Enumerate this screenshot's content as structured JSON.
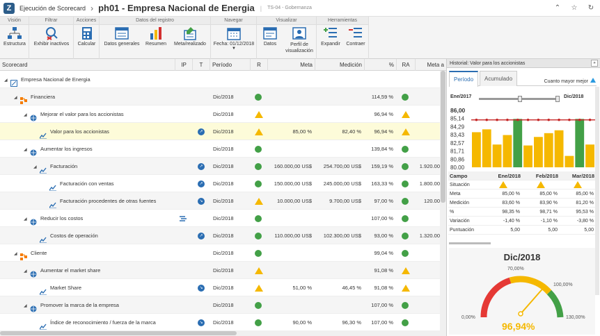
{
  "app": {
    "name": "Ejecución de Scorecard",
    "title": "ph01 - Empresa Nacional de Energia",
    "subtitle": "TS-04 - Gobernanza"
  },
  "ribbon": {
    "groups": [
      {
        "label": "Visión"
      },
      {
        "label": "Filtrar"
      },
      {
        "label": "Acciones"
      },
      {
        "label": "Datos del registro"
      },
      {
        "label": "Navegar"
      },
      {
        "label": "Visualizar"
      },
      {
        "label": "Herramientas"
      }
    ],
    "buttons": {
      "estructura": "Estructura",
      "exhibir": "Exhibir inactivos",
      "calcular": "Calcular",
      "datos_generales": "Datos generales",
      "resumen": "Resumen",
      "meta_realizado": "Meta/realizado",
      "fecha": "Fecha: 01/12/2018",
      "datos": "Datos",
      "perfil": "Perfil de visualización",
      "expandir": "Expandir",
      "contraer": "Contraer"
    }
  },
  "grid": {
    "headers": {
      "scorecard": "Scorecard",
      "ip": "IP",
      "t": "T",
      "periodo": "Período",
      "r": "R",
      "meta": "Meta",
      "medicion": "Medición",
      "pct": "%",
      "ra": "RA",
      "meta_acum": "Meta a"
    },
    "rows": [
      {
        "name": "Empresa Nacional de Energia",
        "periodo": "",
        "r": "",
        "meta": "",
        "medicion": "",
        "pct": "",
        "ra": "",
        "meta_acum": ""
      },
      {
        "name": "Financiera",
        "periodo": "Dic/2018",
        "r": "green",
        "meta": "",
        "medicion": "",
        "pct": "114,59 %",
        "ra": "green",
        "meta_acum": ""
      },
      {
        "name": "Mejorar el valor para los accionistas",
        "periodo": "Dic/2018",
        "r": "warn",
        "meta": "",
        "medicion": "",
        "pct": "96,94 %",
        "ra": "warn",
        "meta_acum": ""
      },
      {
        "name": "Valor para los accionistas",
        "periodo": "Dic/2018",
        "r": "warn",
        "meta": "85,00 %",
        "medicion": "82,40 %",
        "pct": "96,94 %",
        "ra": "warn",
        "meta_acum": ""
      },
      {
        "name": "Aumentar los ingresos",
        "periodo": "Dic/2018",
        "r": "green",
        "meta": "",
        "medicion": "",
        "pct": "139,84 %",
        "ra": "green",
        "meta_acum": ""
      },
      {
        "name": "Facturación",
        "periodo": "Dic/2018",
        "r": "green",
        "meta": "160.000,00 US$",
        "medicion": "254.700,00 US$",
        "pct": "159,19 %",
        "ra": "green",
        "meta_acum": "1.920.00"
      },
      {
        "name": "Facturación con ventas",
        "periodo": "Dic/2018",
        "r": "green",
        "meta": "150.000,00 US$",
        "medicion": "245.000,00 US$",
        "pct": "163,33 %",
        "ra": "green",
        "meta_acum": "1.800.00"
      },
      {
        "name": "Facturación procedentes de otras fuentes",
        "periodo": "Dic/2018",
        "r": "warn",
        "meta": "10.000,00 US$",
        "medicion": "9.700,00 US$",
        "pct": "97,00 %",
        "ra": "green",
        "meta_acum": "120.00"
      },
      {
        "name": "Reducir los costos",
        "periodo": "Dic/2018",
        "r": "green",
        "meta": "",
        "medicion": "",
        "pct": "107,00 %",
        "ra": "green",
        "meta_acum": ""
      },
      {
        "name": "Costos de operación",
        "periodo": "Dic/2018",
        "r": "green",
        "meta": "110.000,00 US$",
        "medicion": "102.300,00 US$",
        "pct": "93,00 %",
        "ra": "green",
        "meta_acum": "1.320.00"
      },
      {
        "name": "Cliente",
        "periodo": "Dic/2018",
        "r": "green",
        "meta": "",
        "medicion": "",
        "pct": "99,04 %",
        "ra": "green",
        "meta_acum": ""
      },
      {
        "name": "Aumentar el market share",
        "periodo": "Dic/2018",
        "r": "warn",
        "meta": "",
        "medicion": "",
        "pct": "91,08 %",
        "ra": "warn",
        "meta_acum": ""
      },
      {
        "name": "Market Share",
        "periodo": "Dic/2018",
        "r": "warn",
        "meta": "51,00 %",
        "medicion": "46,45 %",
        "pct": "91,08 %",
        "ra": "warn",
        "meta_acum": ""
      },
      {
        "name": "Promover la marca de la empresa",
        "periodo": "Dic/2018",
        "r": "green",
        "meta": "",
        "medicion": "",
        "pct": "107,00 %",
        "ra": "green",
        "meta_acum": ""
      },
      {
        "name": "Índice de reconocimiento / fuerza de la marca",
        "periodo": "Dic/2018",
        "r": "green",
        "meta": "90,00 %",
        "medicion": "96,30 %",
        "pct": "107,00 %",
        "ra": "green",
        "meta_acum": ""
      }
    ]
  },
  "panel": {
    "title": "Historial: Valor para los accionistas",
    "tabs": [
      "Período",
      "Acumulado"
    ],
    "better": "Cuanto mayor mejor",
    "range_start": "Ene/2017",
    "range_end": "Dic/2018",
    "table": {
      "headers": [
        "Campo",
        "Ene/2018",
        "Feb/2018",
        "Mar/2018"
      ],
      "rows": [
        {
          "label": "Situación",
          "v": [
            "warn",
            "warn",
            "warn"
          ]
        },
        {
          "label": "Meta",
          "v": [
            "85,00 %",
            "85,00 %",
            "85,00 %"
          ]
        },
        {
          "label": "Medición",
          "v": [
            "83,60 %",
            "83,90 %",
            "81,20 %"
          ]
        },
        {
          "label": "%",
          "v": [
            "98,35 %",
            "98,71 %",
            "95,53 %"
          ]
        },
        {
          "label": "Variación",
          "v": [
            "-1,40 %",
            "-1,10 %",
            "-3,80 %"
          ]
        },
        {
          "label": "Puntuación",
          "v": [
            "5,00",
            "5,00",
            "5,00"
          ]
        }
      ]
    },
    "gauge": {
      "title": "Dic/2018",
      "value": "96,94%",
      "ticks": [
        "0,00%",
        "70,00%",
        "100,00%",
        "130,00%"
      ]
    }
  },
  "chart_data": {
    "type": "bar",
    "ylabels": [
      "86,00",
      "85,14",
      "84,29",
      "83,43",
      "82,57",
      "81,71",
      "80,86",
      "80,00"
    ],
    "ylim": [
      80,
      86
    ],
    "values": [
      83.7,
      84.0,
      82.4,
      83.4,
      85.1,
      82.3,
      83.2,
      83.6,
      83.9,
      81.2,
      85.1,
      82.4
    ],
    "colors": [
      "#f5b800",
      "#f5b800",
      "#f5b800",
      "#f5b800",
      "#43a047",
      "#f5b800",
      "#f5b800",
      "#f5b800",
      "#f5b800",
      "#f5b800",
      "#43a047",
      "#f5b800"
    ],
    "meta": 85.0
  }
}
